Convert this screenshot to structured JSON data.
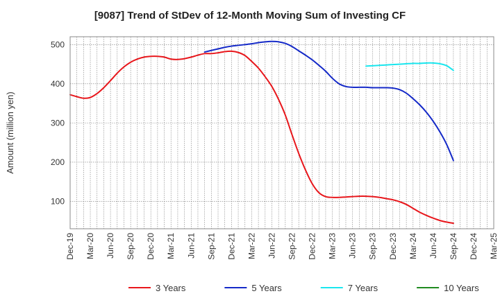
{
  "chart_data": {
    "type": "line",
    "title": "[9087]  Trend of StDev of 12-Month Moving Sum of Investing CF",
    "ylabel": "Amount (million yen)",
    "xlabel": "",
    "ylim": [
      30,
      520
    ],
    "y_ticks": [
      100,
      200,
      300,
      400,
      500
    ],
    "x_ticks": [
      "Dec-19",
      "Mar-20",
      "Jun-20",
      "Sep-20",
      "Dec-20",
      "Mar-21",
      "Jun-21",
      "Sep-21",
      "Dec-21",
      "Mar-22",
      "Jun-22",
      "Sep-22",
      "Dec-22",
      "Mar-23",
      "Jun-23",
      "Sep-23",
      "Dec-23",
      "Mar-24",
      "Jun-24",
      "Sep-24",
      "Dec-24",
      "Mar-25"
    ],
    "grid": true,
    "legend_position": "bottom",
    "series": [
      {
        "name": "3 Years",
        "color": "#e8161b",
        "points": [
          [
            "Dec-19",
            372
          ],
          [
            "Jan-20",
            367
          ],
          [
            "Feb-20",
            363
          ],
          [
            "Mar-20",
            365
          ],
          [
            "Apr-20",
            375
          ],
          [
            "May-20",
            390
          ],
          [
            "Jun-20",
            408
          ],
          [
            "Jul-20",
            427
          ],
          [
            "Aug-20",
            443
          ],
          [
            "Sep-20",
            455
          ],
          [
            "Oct-20",
            463
          ],
          [
            "Nov-20",
            468
          ],
          [
            "Dec-20",
            470
          ],
          [
            "Jan-21",
            470
          ],
          [
            "Feb-21",
            468
          ],
          [
            "Mar-21",
            463
          ],
          [
            "Apr-21",
            462
          ],
          [
            "May-21",
            464
          ],
          [
            "Jun-21",
            468
          ],
          [
            "Jul-21",
            473
          ],
          [
            "Aug-21",
            477
          ],
          [
            "Sep-21",
            477
          ],
          [
            "Oct-21",
            479
          ],
          [
            "Nov-21",
            482
          ],
          [
            "Dec-21",
            483
          ],
          [
            "Jan-22",
            480
          ],
          [
            "Feb-22",
            472
          ],
          [
            "Mar-22",
            457
          ],
          [
            "Apr-22",
            440
          ],
          [
            "May-22",
            418
          ],
          [
            "Jun-22",
            393
          ],
          [
            "Jul-22",
            360
          ],
          [
            "Aug-22",
            320
          ],
          [
            "Sep-22",
            270
          ],
          [
            "Oct-22",
            222
          ],
          [
            "Nov-22",
            180
          ],
          [
            "Dec-22",
            145
          ],
          [
            "Jan-23",
            122
          ],
          [
            "Feb-23",
            112
          ],
          [
            "Mar-23",
            110
          ],
          [
            "Apr-23",
            110
          ],
          [
            "May-23",
            111
          ],
          [
            "Jun-23",
            112
          ],
          [
            "Jul-23",
            113
          ],
          [
            "Aug-23",
            113
          ],
          [
            "Sep-23",
            112
          ],
          [
            "Oct-23",
            110
          ],
          [
            "Nov-23",
            107
          ],
          [
            "Dec-23",
            104
          ],
          [
            "Jan-24",
            99
          ],
          [
            "Feb-24",
            92
          ],
          [
            "Mar-24",
            82
          ],
          [
            "Apr-24",
            72
          ],
          [
            "May-24",
            64
          ],
          [
            "Jun-24",
            57
          ],
          [
            "Jul-24",
            51
          ],
          [
            "Aug-24",
            47
          ],
          [
            "Sep-24",
            44
          ]
        ]
      },
      {
        "name": "5 Years",
        "color": "#1429c8",
        "points": [
          [
            "Aug-21",
            481
          ],
          [
            "Sep-21",
            485
          ],
          [
            "Oct-21",
            489
          ],
          [
            "Nov-21",
            493
          ],
          [
            "Dec-21",
            496
          ],
          [
            "Jan-22",
            498
          ],
          [
            "Feb-22",
            500
          ],
          [
            "Mar-22",
            502
          ],
          [
            "Apr-22",
            505
          ],
          [
            "May-22",
            507
          ],
          [
            "Jun-22",
            508
          ],
          [
            "Jul-22",
            507
          ],
          [
            "Aug-22",
            503
          ],
          [
            "Sep-22",
            495
          ],
          [
            "Oct-22",
            484
          ],
          [
            "Nov-22",
            473
          ],
          [
            "Dec-22",
            461
          ],
          [
            "Jan-23",
            447
          ],
          [
            "Feb-23",
            432
          ],
          [
            "Mar-23",
            414
          ],
          [
            "Apr-23",
            400
          ],
          [
            "May-23",
            393
          ],
          [
            "Jun-23",
            391
          ],
          [
            "Jul-23",
            391
          ],
          [
            "Aug-23",
            391
          ],
          [
            "Sep-23",
            390
          ],
          [
            "Oct-23",
            390
          ],
          [
            "Nov-23",
            390
          ],
          [
            "Dec-23",
            389
          ],
          [
            "Jan-24",
            385
          ],
          [
            "Feb-24",
            376
          ],
          [
            "Mar-24",
            362
          ],
          [
            "Apr-24",
            346
          ],
          [
            "May-24",
            327
          ],
          [
            "Jun-24",
            304
          ],
          [
            "Jul-24",
            277
          ],
          [
            "Aug-24",
            245
          ],
          [
            "Sep-24",
            204
          ]
        ]
      },
      {
        "name": "7 Years",
        "color": "#19e6ee",
        "points": [
          [
            "Aug-23",
            445
          ],
          [
            "Sep-23",
            446
          ],
          [
            "Oct-23",
            447
          ],
          [
            "Nov-23",
            448
          ],
          [
            "Dec-23",
            449
          ],
          [
            "Jan-24",
            450
          ],
          [
            "Feb-24",
            451
          ],
          [
            "Mar-24",
            452
          ],
          [
            "Apr-24",
            452
          ],
          [
            "May-24",
            453
          ],
          [
            "Jun-24",
            453
          ],
          [
            "Jul-24",
            451
          ],
          [
            "Aug-24",
            446
          ],
          [
            "Sep-24",
            434
          ]
        ]
      },
      {
        "name": "10 Years",
        "color": "#1f8a1f",
        "points": []
      }
    ]
  }
}
